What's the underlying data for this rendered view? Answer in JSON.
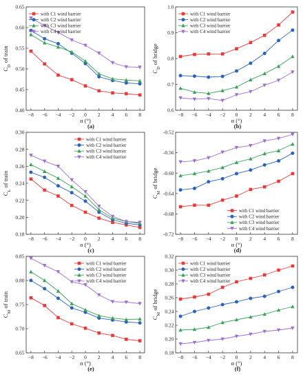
{
  "chart_data": [
    {
      "type": "line",
      "panel": "(a)",
      "xlabel": "α (°)",
      "ylabel": "C_D of train",
      "xlim": [
        -8.7,
        8.7
      ],
      "ylim": [
        0.4,
        0.65
      ],
      "xticks": [
        -8,
        -6,
        -4,
        -2,
        0,
        2,
        4,
        6,
        8
      ],
      "yticks": [
        0.4,
        0.45,
        0.5,
        0.55,
        0.6,
        0.65
      ],
      "ytick_labels": [
        "0.40",
        "0.45",
        "0.50",
        "0.55",
        "0.60",
        "0.65"
      ],
      "x": [
        -8,
        -6,
        -4,
        -2,
        0,
        2,
        4,
        6,
        8
      ],
      "legend": "top-left",
      "series": [
        {
          "name": "with C1 wind barrier",
          "color": "#e63b3b",
          "marker": "square",
          "values": [
            0.543,
            0.512,
            0.485,
            0.474,
            0.459,
            0.447,
            0.442,
            0.44,
            0.437
          ]
        },
        {
          "name": "with C2 wind barrier",
          "color": "#2a63b8",
          "marker": "circle",
          "values": [
            0.593,
            0.573,
            0.561,
            0.538,
            0.513,
            0.481,
            0.472,
            0.466,
            0.464
          ]
        },
        {
          "name": "with C3 wind barrier",
          "color": "#3aa05a",
          "marker": "triangle",
          "values": [
            0.583,
            0.563,
            0.553,
            0.541,
            0.519,
            0.488,
            0.476,
            0.473,
            0.471
          ]
        },
        {
          "name": "with C4 wind barrier",
          "color": "#9b6fd2",
          "marker": "triangle-down",
          "values": [
            0.623,
            0.605,
            0.588,
            0.57,
            0.557,
            0.538,
            0.515,
            0.505,
            0.504
          ]
        }
      ]
    },
    {
      "type": "line",
      "panel": "(b)",
      "xlabel": "α (°)",
      "ylabel": "C_D of bridge",
      "xlim": [
        -8.7,
        8.7
      ],
      "ylim": [
        0.6,
        1.0
      ],
      "xticks": [
        -8,
        -6,
        -4,
        -2,
        0,
        2,
        4,
        6,
        8
      ],
      "yticks": [
        0.6,
        0.7,
        0.8,
        0.9,
        1.0
      ],
      "ytick_labels": [
        "0.6",
        "0.7",
        "0.8",
        "0.9",
        "1.0"
      ],
      "x": [
        -8,
        -6,
        -4,
        -2,
        0,
        2,
        4,
        6,
        8
      ],
      "legend": "top-left",
      "series": [
        {
          "name": "with C1 wind barrier",
          "color": "#e63b3b",
          "marker": "square",
          "values": [
            0.808,
            0.816,
            0.818,
            0.818,
            0.838,
            0.862,
            0.89,
            0.93,
            0.98
          ]
        },
        {
          "name": "with C2 wind barrier",
          "color": "#2a63b8",
          "marker": "circle",
          "values": [
            0.734,
            0.732,
            0.728,
            0.731,
            0.752,
            0.782,
            0.82,
            0.87,
            0.91
          ]
        },
        {
          "name": "with C3 wind barrier",
          "color": "#3aa05a",
          "marker": "triangle",
          "values": [
            0.685,
            0.67,
            0.665,
            0.676,
            0.69,
            0.718,
            0.742,
            0.77,
            0.808
          ]
        },
        {
          "name": "with C4 wind barrier",
          "color": "#9b6fd2",
          "marker": "triangle-down",
          "values": [
            0.648,
            0.643,
            0.645,
            0.638,
            0.66,
            0.672,
            0.697,
            0.716,
            0.748
          ]
        }
      ]
    },
    {
      "type": "line",
      "panel": "(c)",
      "xlabel": "α (°)",
      "ylabel": "C_L of train",
      "xlim": [
        -8.7,
        8.7
      ],
      "ylim": [
        0.18,
        0.3
      ],
      "xticks": [
        -8,
        -6,
        -4,
        -2,
        0,
        2,
        4,
        6,
        8
      ],
      "yticks": [
        0.18,
        0.2,
        0.22,
        0.24,
        0.26,
        0.28,
        0.3
      ],
      "ytick_labels": [
        "0.18",
        "0.20",
        "0.22",
        "0.24",
        "0.26",
        "0.28",
        "0.30"
      ],
      "x": [
        -8,
        -6,
        -4,
        -2,
        0,
        2,
        4,
        6,
        8
      ],
      "legend": "top-right",
      "series": [
        {
          "name": "with C1 wind barrier",
          "color": "#e63b3b",
          "marker": "square",
          "values": [
            0.245,
            0.232,
            0.225,
            0.214,
            0.206,
            0.199,
            0.194,
            0.191,
            0.188
          ]
        },
        {
          "name": "with C2 wind barrier",
          "color": "#2a63b8",
          "marker": "circle",
          "values": [
            0.253,
            0.247,
            0.237,
            0.229,
            0.219,
            0.206,
            0.197,
            0.193,
            0.191
          ]
        },
        {
          "name": "with C3 wind barrier",
          "color": "#3aa05a",
          "marker": "triangle",
          "values": [
            0.262,
            0.254,
            0.246,
            0.236,
            0.225,
            0.209,
            0.199,
            0.195,
            0.193
          ]
        },
        {
          "name": "with C4 wind barrier",
          "color": "#9b6fd2",
          "marker": "triangle-down",
          "values": [
            0.273,
            0.266,
            0.26,
            0.244,
            0.23,
            0.213,
            0.201,
            0.195,
            0.194
          ]
        }
      ]
    },
    {
      "type": "line",
      "panel": "(d)",
      "xlabel": "α (°)",
      "ylabel": "C_M of bridge",
      "xlim": [
        -8.7,
        8.7
      ],
      "ylim": [
        -0.72,
        -0.52
      ],
      "xticks": [
        -8,
        -6,
        -4,
        -2,
        0,
        2,
        4,
        6,
        8
      ],
      "yticks": [
        -0.72,
        -0.68,
        -0.64,
        -0.6,
        -0.56,
        -0.52
      ],
      "ytick_labels": [
        "-0.72",
        "-0.68",
        "-0.64",
        "-0.60",
        "-0.56",
        "-0.52"
      ],
      "x": [
        -8,
        -6,
        -4,
        -2,
        0,
        2,
        4,
        6,
        8
      ],
      "legend": "bottom-right",
      "series": [
        {
          "name": "with C1 wind barrier",
          "color": "#e63b3b",
          "marker": "square",
          "values": [
            -0.666,
            -0.663,
            -0.663,
            -0.653,
            -0.645,
            -0.632,
            -0.627,
            -0.616,
            -0.601
          ]
        },
        {
          "name": "with C2 wind barrier",
          "color": "#2a63b8",
          "marker": "circle",
          "values": [
            -0.633,
            -0.63,
            -0.617,
            -0.611,
            -0.601,
            -0.594,
            -0.584,
            -0.576,
            -0.561
          ]
        },
        {
          "name": "with C3 wind barrier",
          "color": "#3aa05a",
          "marker": "triangle",
          "values": [
            -0.605,
            -0.601,
            -0.596,
            -0.589,
            -0.579,
            -0.572,
            -0.562,
            -0.556,
            -0.543
          ]
        },
        {
          "name": "with C4 wind barrier",
          "color": "#9b6fd2",
          "marker": "triangle-down",
          "values": [
            -0.578,
            -0.576,
            -0.57,
            -0.559,
            -0.55,
            -0.546,
            -0.537,
            -0.532,
            -0.524
          ]
        }
      ]
    },
    {
      "type": "line",
      "panel": "(e)",
      "xlabel": "α (°)",
      "ylabel": "C_M of train",
      "xlim": [
        -8.7,
        8.7
      ],
      "ylim": [
        0.65,
        0.85
      ],
      "xticks": [
        -8,
        -6,
        -4,
        -2,
        0,
        2,
        4,
        6,
        8
      ],
      "yticks": [
        0.65,
        0.7,
        0.75,
        0.8,
        0.85
      ],
      "ytick_labels": [
        "0.65",
        "0.70",
        "0.75",
        "0.80",
        "0.85"
      ],
      "x": [
        -8,
        -6,
        -4,
        -2,
        0,
        2,
        4,
        6,
        8
      ],
      "legend": "top-right",
      "series": [
        {
          "name": "with C1 wind barrier",
          "color": "#e63b3b",
          "marker": "square",
          "values": [
            0.764,
            0.748,
            0.723,
            0.71,
            0.701,
            0.691,
            0.686,
            0.678,
            0.675
          ]
        },
        {
          "name": "with C2 wind barrier",
          "color": "#2a63b8",
          "marker": "circle",
          "values": [
            0.8,
            0.783,
            0.763,
            0.743,
            0.734,
            0.722,
            0.718,
            0.714,
            0.712
          ]
        },
        {
          "name": "with C3 wind barrier",
          "color": "#3aa05a",
          "marker": "triangle",
          "values": [
            0.818,
            0.8,
            0.778,
            0.752,
            0.739,
            0.727,
            0.722,
            0.719,
            0.72
          ]
        },
        {
          "name": "with C4 wind barrier",
          "color": "#9b6fd2",
          "marker": "triangle-down",
          "values": [
            0.846,
            0.831,
            0.818,
            0.797,
            0.791,
            0.77,
            0.756,
            0.755,
            0.752
          ]
        }
      ]
    },
    {
      "type": "line",
      "panel": "(f)",
      "xlabel": "α (°)",
      "ylabel": "C_M of bridge",
      "xlim": [
        -8.7,
        8.7
      ],
      "ylim": [
        0.18,
        0.32
      ],
      "xticks": [
        -8,
        -6,
        -4,
        -2,
        0,
        2,
        4,
        6,
        8
      ],
      "yticks": [
        0.18,
        0.2,
        0.22,
        0.24,
        0.26,
        0.28,
        0.3,
        0.32
      ],
      "ytick_labels": [
        "0.18",
        "0.20",
        "0.22",
        "0.24",
        "0.26",
        "0.28",
        "0.30",
        "0.32"
      ],
      "x": [
        -8,
        -6,
        -4,
        -2,
        0,
        2,
        4,
        6,
        8
      ],
      "legend": "top-left",
      "series": [
        {
          "name": "with C1 wind barrier",
          "color": "#e63b3b",
          "marker": "square",
          "values": [
            0.258,
            0.261,
            0.265,
            0.275,
            0.283,
            0.288,
            0.293,
            0.3,
            0.306
          ]
        },
        {
          "name": "with C2 wind barrier",
          "color": "#2a63b8",
          "marker": "circle",
          "values": [
            0.233,
            0.24,
            0.245,
            0.25,
            0.254,
            0.259,
            0.262,
            0.269,
            0.275
          ]
        },
        {
          "name": "with C3 wind barrier",
          "color": "#3aa05a",
          "marker": "triangle",
          "values": [
            0.213,
            0.214,
            0.217,
            0.224,
            0.228,
            0.232,
            0.236,
            0.242,
            0.247
          ]
        },
        {
          "name": "with C4 wind barrier",
          "color": "#9b6fd2",
          "marker": "triangle-down",
          "values": [
            0.193,
            0.195,
            0.198,
            0.2,
            0.204,
            0.207,
            0.211,
            0.213,
            0.216
          ]
        }
      ]
    }
  ]
}
